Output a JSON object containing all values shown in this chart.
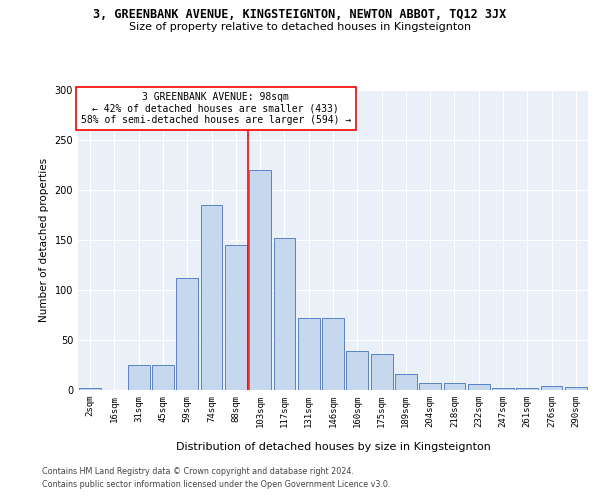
{
  "title": "3, GREENBANK AVENUE, KINGSTEIGNTON, NEWTON ABBOT, TQ12 3JX",
  "subtitle": "Size of property relative to detached houses in Kingsteignton",
  "xlabel": "Distribution of detached houses by size in Kingsteignton",
  "ylabel": "Number of detached properties",
  "footnote1": "Contains HM Land Registry data © Crown copyright and database right 2024.",
  "footnote2": "Contains public sector information licensed under the Open Government Licence v3.0.",
  "bar_labels": [
    "2sqm",
    "16sqm",
    "31sqm",
    "45sqm",
    "59sqm",
    "74sqm",
    "88sqm",
    "103sqm",
    "117sqm",
    "131sqm",
    "146sqm",
    "160sqm",
    "175sqm",
    "189sqm",
    "204sqm",
    "218sqm",
    "232sqm",
    "247sqm",
    "261sqm",
    "276sqm",
    "290sqm"
  ],
  "bar_heights": [
    2,
    0,
    25,
    25,
    112,
    185,
    145,
    220,
    152,
    72,
    72,
    39,
    36,
    16,
    7,
    7,
    6,
    2,
    2,
    4,
    3
  ],
  "bar_color": "#c5d8ed",
  "bar_edge_color": "#4472c4",
  "vline_color": "red",
  "vline_position": 6.5,
  "annotation_title": "3 GREENBANK AVENUE: 98sqm",
  "annotation_line1": "← 42% of detached houses are smaller (433)",
  "annotation_line2": "58% of semi-detached houses are larger (594) →",
  "ylim": [
    0,
    300
  ],
  "yticks": [
    0,
    50,
    100,
    150,
    200,
    250,
    300
  ],
  "bg_color": "#eaf0f8",
  "grid_color": "white",
  "title_fontsize": 8.5,
  "subtitle_fontsize": 8,
  "ylabel_fontsize": 7.5,
  "xlabel_fontsize": 8,
  "tick_fontsize": 6.5,
  "annotation_fontsize": 7,
  "footnote_fontsize": 5.8
}
